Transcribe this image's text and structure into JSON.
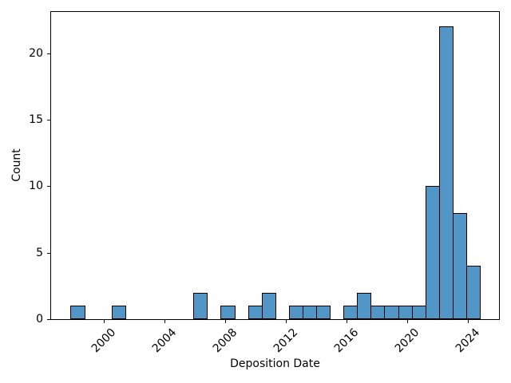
{
  "chart_data": {
    "type": "bar",
    "subtype": "histogram",
    "title": "",
    "xlabel": "Deposition Date",
    "ylabel": "Count",
    "bar_color": "#5296c7",
    "bar_edge_color": "#000000",
    "bin_start": 1997.79,
    "bin_width": 0.9,
    "counts": [
      1,
      0,
      0,
      1,
      0,
      0,
      0,
      0,
      0,
      2,
      0,
      1,
      0,
      1,
      2,
      0,
      1,
      1,
      1,
      0,
      1,
      2,
      1,
      1,
      1,
      1,
      10,
      22,
      8,
      4
    ],
    "total_count": 62,
    "max_count": 22,
    "xlim": [
      1996.5,
      2026.05
    ],
    "ylim": [
      0,
      23.1
    ],
    "xticks": [
      2000,
      2004,
      2008,
      2012,
      2016,
      2020,
      2024
    ],
    "yticks": [
      0,
      5,
      10,
      15,
      20
    ],
    "xtick_rotation_deg": 45,
    "grid": false,
    "legend": false
  }
}
